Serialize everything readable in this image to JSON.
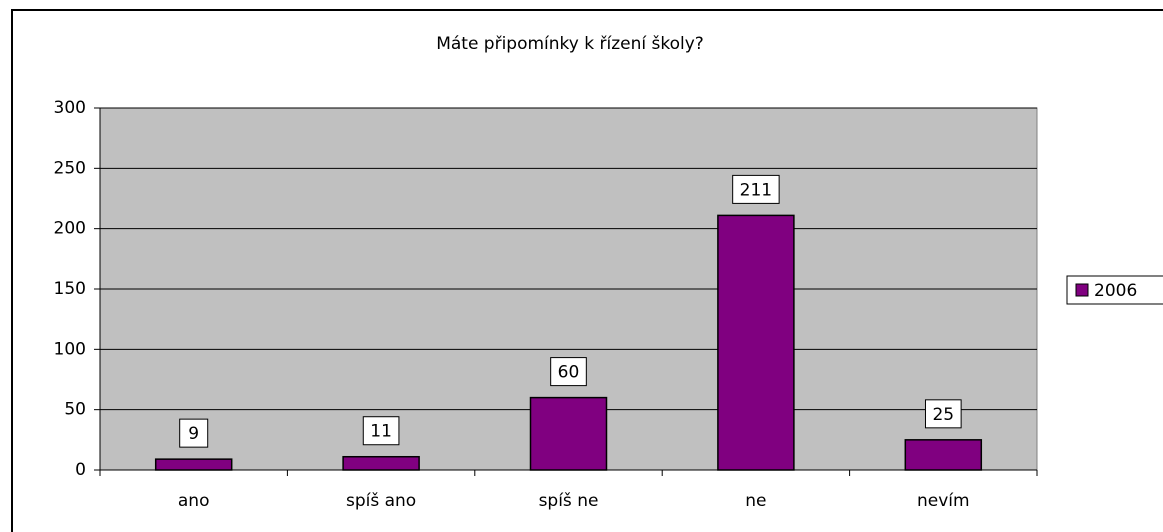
{
  "chart_data": {
    "type": "bar",
    "title": "Máte připomínky k řízení školy?",
    "categories": [
      "ano",
      "spíš ano",
      "spíš ne",
      "ne",
      "nevím"
    ],
    "series": [
      {
        "name": "2006",
        "color": "#800080",
        "values": [
          9,
          11,
          60,
          211,
          25
        ]
      }
    ],
    "ylim": [
      0,
      300
    ],
    "yticks": [
      0,
      50,
      100,
      150,
      200,
      250,
      300
    ],
    "grid": true,
    "legend": "right"
  }
}
